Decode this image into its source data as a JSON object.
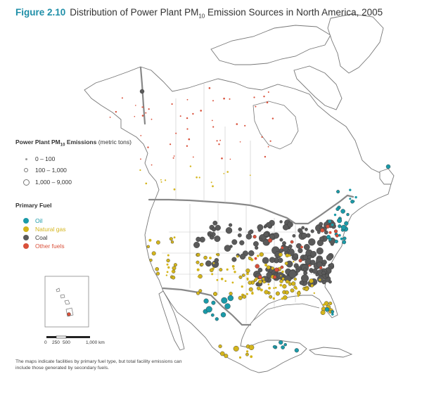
{
  "title": {
    "figure_label": "Figure 2.10",
    "text_before": "Distribution of Power Plant PM",
    "subscript": "10",
    "text_after": " Emission Sources in North America, 2005"
  },
  "legend_emissions": {
    "title_before": "Power Plant PM",
    "title_sub": "10",
    "title_after": " Emissions",
    "unit": "(metric tons)",
    "classes": [
      {
        "label": "0 – 100"
      },
      {
        "label": "100 – 1,000"
      },
      {
        "label": "1,000 – 9,000"
      }
    ]
  },
  "legend_fuel": {
    "title": "Primary Fuel",
    "items": [
      {
        "label": "Oil",
        "color": "#1a9aa8"
      },
      {
        "label": "Natural gas",
        "color": "#d4b51c"
      },
      {
        "label": "Coal",
        "color": "#5a5a5a"
      },
      {
        "label": "Other fuels",
        "color": "#d9503a"
      }
    ]
  },
  "scale": {
    "ticks": [
      "0",
      "250",
      "500",
      "1,000 km"
    ]
  },
  "note": "The maps indicate facilities by primary fuel type, but total facility emissions can include those generated by secondary fuels.",
  "colors": {
    "oil": "#1a9aa8",
    "gas": "#d4b51c",
    "coal": "#5a5a5a",
    "other": "#d9503a",
    "land": "#ffffff",
    "border": "#888888"
  }
}
